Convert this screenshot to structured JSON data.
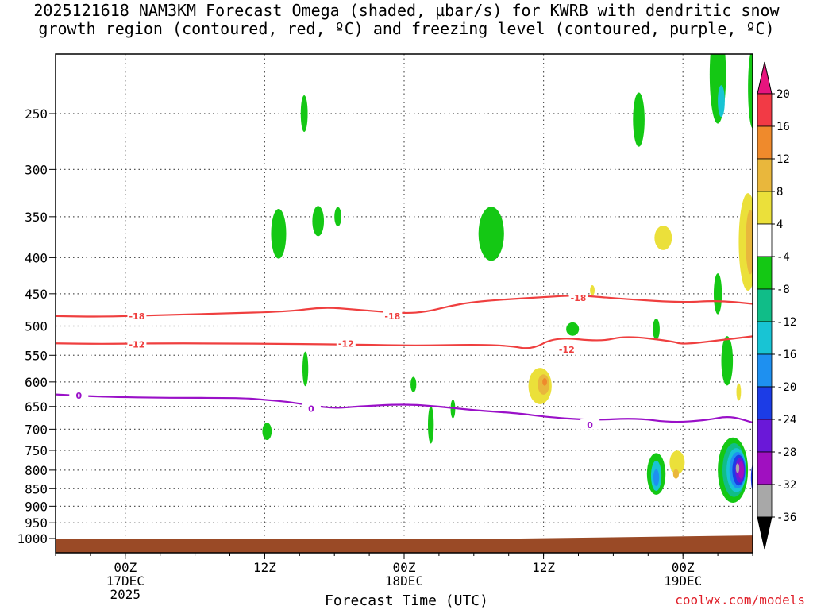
{
  "chart_data": {
    "type": "heatmap",
    "title_line1": "2025121618 NAM3KM Forecast Omega (shaded, µbar/s) for KWRB with dendritic snow",
    "title_line2": "growth region (contoured, red, ºC) and freezing level (contoured, purple, ºC)",
    "xlabel": "Forecast Time (UTC)",
    "credit": "coolwx.com/models",
    "x_ticks": [
      {
        "hours": 0,
        "lines": [
          "00Z",
          "17DEC",
          "2025"
        ]
      },
      {
        "hours": 12,
        "lines": [
          "12Z"
        ]
      },
      {
        "hours": 24,
        "lines": [
          "00Z",
          "18DEC"
        ]
      },
      {
        "hours": 36,
        "lines": [
          "12Z"
        ]
      },
      {
        "hours": 48,
        "lines": [
          "00Z",
          "19DEC"
        ]
      }
    ],
    "x_range_hours": [
      -6,
      54
    ],
    "y_ticks": [
      250,
      300,
      350,
      400,
      450,
      500,
      550,
      600,
      650,
      700,
      750,
      800,
      850,
      900,
      950,
      1000
    ],
    "y_range_hpa": [
      200,
      1015
    ],
    "colorbar": {
      "labels": [
        "20",
        "16",
        "12",
        "8",
        "4",
        "-4",
        "-8",
        "-12",
        "-16",
        "-20",
        "-24",
        "-28",
        "-32",
        "-36"
      ],
      "bands": [
        {
          "range": [
            16,
            20
          ],
          "color": "#f23a45"
        },
        {
          "range": [
            12,
            16
          ],
          "color": "#ef8a2c"
        },
        {
          "range": [
            8,
            12
          ],
          "color": "#e9b73c"
        },
        {
          "range": [
            4,
            8
          ],
          "color": "#ebe03a"
        },
        {
          "range": [
            -4,
            4
          ],
          "color": "#ffffff"
        },
        {
          "range": [
            -8,
            -4
          ],
          "color": "#14c814"
        },
        {
          "range": [
            -12,
            -8
          ],
          "color": "#10bd88"
        },
        {
          "range": [
            -16,
            -12
          ],
          "color": "#18c4d4"
        },
        {
          "range": [
            -20,
            -16
          ],
          "color": "#1e90f0"
        },
        {
          "range": [
            -24,
            -20
          ],
          "color": "#1c3ce6"
        },
        {
          "range": [
            -28,
            -24
          ],
          "color": "#6a18d8"
        },
        {
          "range": [
            -32,
            -28
          ],
          "color": "#a010c0"
        },
        {
          "range": [
            -36,
            -32
          ],
          "color": "#a8a8a8"
        }
      ],
      "top_color": "#e6157e",
      "bottom_color": "#000000"
    },
    "ground_color": "#9a4a26",
    "ground_top_hpa": [
      [
        -6,
        1002
      ],
      [
        20,
        1002
      ],
      [
        34,
        1000
      ],
      [
        54,
        990
      ]
    ],
    "contours": [
      {
        "level": "-18",
        "color": "#ef3f3f",
        "points": [
          [
            -6,
            484
          ],
          [
            -2,
            485
          ],
          [
            2,
            483
          ],
          [
            8,
            480
          ],
          [
            14,
            477
          ],
          [
            17,
            470
          ],
          [
            20,
            474
          ],
          [
            24,
            480
          ],
          [
            26,
            477
          ],
          [
            28,
            468
          ],
          [
            30,
            462
          ],
          [
            33,
            458
          ],
          [
            36,
            455
          ],
          [
            39,
            452
          ],
          [
            43,
            458
          ],
          [
            48,
            463
          ],
          [
            51,
            460
          ],
          [
            54,
            465
          ]
        ],
        "labels": [
          [
            1,
            484
          ],
          [
            23,
            484
          ],
          [
            39,
            456
          ]
        ]
      },
      {
        "level": "-12",
        "color": "#ef3f3f",
        "points": [
          [
            -6,
            529
          ],
          [
            -2,
            530
          ],
          [
            2,
            529
          ],
          [
            8,
            529
          ],
          [
            14,
            530
          ],
          [
            20,
            531
          ],
          [
            25,
            533
          ],
          [
            30,
            531
          ],
          [
            33,
            533
          ],
          [
            35,
            540
          ],
          [
            37,
            518
          ],
          [
            41,
            526
          ],
          [
            43,
            516
          ],
          [
            47,
            525
          ],
          [
            48,
            531
          ],
          [
            51,
            524
          ],
          [
            54,
            517
          ]
        ],
        "labels": [
          [
            1,
            531
          ],
          [
            19,
            529
          ],
          [
            38,
            540
          ]
        ]
      },
      {
        "level": "0",
        "color": "#9a10c8",
        "points": [
          [
            -6,
            625
          ],
          [
            -2,
            630
          ],
          [
            4,
            632
          ],
          [
            10,
            632
          ],
          [
            12,
            636
          ],
          [
            14,
            640
          ],
          [
            16,
            648
          ],
          [
            18,
            654
          ],
          [
            20,
            650
          ],
          [
            24,
            645
          ],
          [
            27,
            650
          ],
          [
            30,
            658
          ],
          [
            34,
            665
          ],
          [
            36,
            672
          ],
          [
            40,
            680
          ],
          [
            44,
            675
          ],
          [
            47,
            685
          ],
          [
            50,
            680
          ],
          [
            52,
            670
          ],
          [
            54,
            685
          ]
        ],
        "labels": [
          [
            -4,
            627
          ],
          [
            16,
            655
          ],
          [
            40,
            690
          ]
        ]
      }
    ],
    "shaded_features": [
      {
        "hours": 15.4,
        "hpa": 250,
        "wh": 0.6,
        "dp": 30,
        "color": "#14c814"
      },
      {
        "hours": 13.2,
        "hpa": 370,
        "wh": 1.3,
        "dp": 60,
        "color": "#14c814"
      },
      {
        "hours": 16.6,
        "hpa": 355,
        "wh": 1.0,
        "dp": 35,
        "color": "#14c814"
      },
      {
        "hours": 18.3,
        "hpa": 350,
        "wh": 0.6,
        "dp": 22,
        "color": "#14c814"
      },
      {
        "hours": 31.5,
        "hpa": 370,
        "wh": 2.2,
        "dp": 65,
        "color": "#14c814"
      },
      {
        "hours": 44.2,
        "hpa": 255,
        "wh": 1.0,
        "dp": 45,
        "color": "#14c814"
      },
      {
        "hours": 51.0,
        "hpa": 220,
        "wh": 1.4,
        "dp": 70,
        "color": "#14c814"
      },
      {
        "hours": 51.3,
        "hpa": 240,
        "wh": 0.6,
        "dp": 25,
        "color": "#18c4d4"
      },
      {
        "hours": 54.0,
        "hpa": 230,
        "wh": 0.8,
        "dp": 60,
        "color": "#14c814"
      },
      {
        "hours": 46.3,
        "hpa": 375,
        "wh": 1.5,
        "dp": 30,
        "color": "#ebe03a"
      },
      {
        "hours": 40.2,
        "hpa": 445,
        "wh": 0.4,
        "dp": 15,
        "color": "#ebe03a"
      },
      {
        "hours": 45.7,
        "hpa": 505,
        "wh": 0.6,
        "dp": 35,
        "color": "#14c814"
      },
      {
        "hours": 38.5,
        "hpa": 505,
        "wh": 1.1,
        "dp": 22,
        "color": "#14c814"
      },
      {
        "hours": 15.5,
        "hpa": 575,
        "wh": 0.5,
        "dp": 65,
        "color": "#14c814"
      },
      {
        "hours": 24.8,
        "hpa": 605,
        "wh": 0.5,
        "dp": 30,
        "color": "#14c814"
      },
      {
        "hours": 12.2,
        "hpa": 705,
        "wh": 0.8,
        "dp": 40,
        "color": "#14c814"
      },
      {
        "hours": 26.3,
        "hpa": 690,
        "wh": 0.5,
        "dp": 85,
        "color": "#14c814"
      },
      {
        "hours": 28.2,
        "hpa": 655,
        "wh": 0.4,
        "dp": 40,
        "color": "#14c814"
      },
      {
        "hours": 35.7,
        "hpa": 608,
        "wh": 2.0,
        "dp": 72,
        "color": "#ebe03a"
      },
      {
        "hours": 36.0,
        "hpa": 605,
        "wh": 1.0,
        "dp": 40,
        "color": "#e9b73c"
      },
      {
        "hours": 36.1,
        "hpa": 600,
        "wh": 0.4,
        "dp": 15,
        "color": "#ef8a2c"
      },
      {
        "hours": 47.5,
        "hpa": 780,
        "wh": 1.3,
        "dp": 60,
        "color": "#ebe03a"
      },
      {
        "hours": 47.4,
        "hpa": 810,
        "wh": 0.5,
        "dp": 25,
        "color": "#e9b73c"
      },
      {
        "hours": 52.8,
        "hpa": 620,
        "wh": 0.4,
        "dp": 35,
        "color": "#ebe03a"
      },
      {
        "hours": 53.6,
        "hpa": 380,
        "wh": 1.6,
        "dp": 120,
        "color": "#ebe03a"
      },
      {
        "hours": 53.8,
        "hpa": 380,
        "wh": 0.8,
        "dp": 80,
        "color": "#e9b73c"
      },
      {
        "hours": 45.7,
        "hpa": 810,
        "wh": 1.6,
        "dp": 110,
        "color": "#14c814"
      },
      {
        "hours": 45.7,
        "hpa": 815,
        "wh": 0.9,
        "dp": 80,
        "color": "#18c4d4"
      },
      {
        "hours": 45.7,
        "hpa": 820,
        "wh": 0.5,
        "dp": 45,
        "color": "#1e90f0"
      },
      {
        "hours": 51.0,
        "hpa": 450,
        "wh": 0.7,
        "dp": 60,
        "color": "#14c814"
      },
      {
        "hours": 51.8,
        "hpa": 560,
        "wh": 1.0,
        "dp": 90,
        "color": "#14c814"
      },
      {
        "hours": 52.3,
        "hpa": 800,
        "wh": 2.6,
        "dp": 170,
        "color": "#14c814"
      },
      {
        "hours": 52.4,
        "hpa": 800,
        "wh": 2.0,
        "dp": 140,
        "color": "#10bd88"
      },
      {
        "hours": 52.6,
        "hpa": 800,
        "wh": 1.7,
        "dp": 115,
        "color": "#18c4d4"
      },
      {
        "hours": 52.7,
        "hpa": 800,
        "wh": 1.4,
        "dp": 95,
        "color": "#1e90f0"
      },
      {
        "hours": 52.8,
        "hpa": 800,
        "wh": 1.1,
        "dp": 80,
        "color": "#1c3ce6"
      },
      {
        "hours": 52.9,
        "hpa": 800,
        "wh": 0.8,
        "dp": 65,
        "color": "#6a18d8"
      },
      {
        "hours": 53.0,
        "hpa": 800,
        "wh": 0.5,
        "dp": 45,
        "color": "#a010c0"
      },
      {
        "hours": 52.7,
        "hpa": 795,
        "wh": 0.3,
        "dp": 25,
        "color": "#a8a8a8"
      },
      {
        "hours": 54.2,
        "hpa": 820,
        "wh": 0.7,
        "dp": 90,
        "color": "#1c3ce6"
      }
    ]
  }
}
